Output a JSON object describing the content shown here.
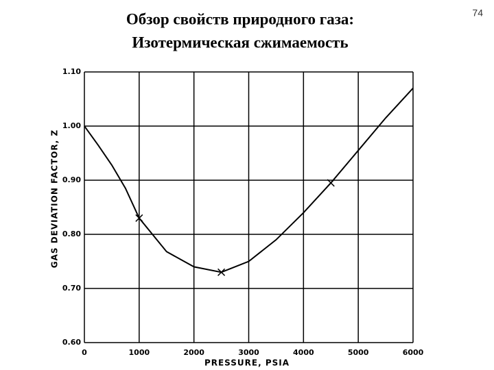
{
  "page_number": "74",
  "chart_data": {
    "type": "line",
    "title": "Обзор свойств природного газа:",
    "subtitle": "Изотермическая сжимаемость",
    "x_label": "PRESSURE, PSIA",
    "y_label": "GAS DEVIATION FACTOR, Z",
    "x": [
      0,
      250,
      500,
      750,
      1000,
      1500,
      2000,
      2500,
      3000,
      3500,
      4000,
      4500,
      5000,
      5500,
      6000
    ],
    "values": [
      1.0,
      0.965,
      0.928,
      0.885,
      0.83,
      0.768,
      0.74,
      0.73,
      0.75,
      0.79,
      0.84,
      0.895,
      0.955,
      1.015,
      1.07
    ],
    "markers": {
      "x": [
        1000,
        2500,
        4500
      ],
      "values": [
        0.83,
        0.73,
        0.895
      ]
    },
    "color": "#000000",
    "xlim": [
      0,
      6000
    ],
    "xticks": [
      0,
      1000,
      2000,
      3000,
      4000,
      5000,
      6000
    ],
    "ylim": [
      0.6,
      1.1
    ],
    "yticks": [
      {
        "value": 0.6,
        "label": "0.60"
      },
      {
        "value": 0.7,
        "label": "0.70"
      },
      {
        "value": 0.8,
        "label": "0.80"
      },
      {
        "value": 0.9,
        "label": "0.90"
      },
      {
        "value": 1.0,
        "label": "1.00"
      },
      {
        "value": 1.1,
        "label": "1.10"
      }
    ],
    "grid": true
  }
}
